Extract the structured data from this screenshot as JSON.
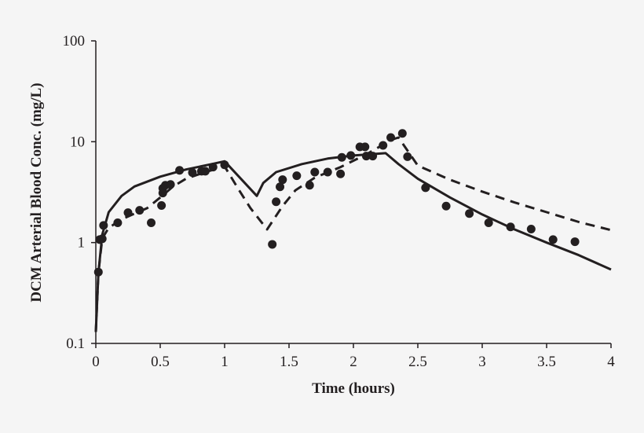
{
  "chart_data": {
    "type": "line",
    "title": "",
    "xlabel": "Time (hours)",
    "ylabel": "DCM Arterial Blood Conc. (mg/L)",
    "xlim": [
      0,
      4
    ],
    "ylim": [
      0.1,
      100
    ],
    "yscale": "log",
    "grid": false,
    "xticks": [
      "0",
      "0.5",
      "1",
      "1.5",
      "2",
      "2.5",
      "3",
      "3.5",
      "4"
    ],
    "xtick_values": [
      0,
      0.5,
      1,
      1.5,
      2,
      2.5,
      3,
      3.5,
      4
    ],
    "yticks": [
      "0.1",
      "1",
      "10",
      "100"
    ],
    "ytick_values": [
      0.1,
      1,
      10,
      100
    ],
    "color": "#231f20",
    "series": [
      {
        "style": "solid-line",
        "x": [
          0,
          0.02,
          0.05,
          0.1,
          0.2,
          0.3,
          0.5,
          0.7,
          0.9,
          1.0,
          1.25,
          1.3,
          1.4,
          1.6,
          1.8,
          2.0,
          2.25,
          2.35,
          2.5,
          2.75,
          3.0,
          3.25,
          3.5,
          3.75,
          4.0
        ],
        "y": [
          0.13,
          0.5,
          1.2,
          2.0,
          2.9,
          3.6,
          4.5,
          5.3,
          6.0,
          6.4,
          2.9,
          3.9,
          5.0,
          6.0,
          6.8,
          7.3,
          7.7,
          6.0,
          4.3,
          2.8,
          1.9,
          1.35,
          1.0,
          0.75,
          0.54
        ]
      },
      {
        "style": "dashed-line",
        "x": [
          0,
          0.02,
          0.05,
          0.1,
          0.2,
          0.4,
          0.5,
          0.6,
          0.7,
          0.85,
          1.0,
          1.1,
          1.2,
          1.33,
          1.45,
          1.55,
          1.7,
          1.9,
          2.1,
          2.3,
          2.35,
          2.5,
          2.75,
          3.0,
          3.25,
          3.5,
          3.75,
          4.0
        ],
        "y": [
          0.13,
          0.5,
          1.1,
          1.4,
          1.7,
          2.2,
          2.8,
          3.6,
          4.3,
          5.0,
          5.7,
          3.5,
          2.2,
          1.35,
          2.3,
          3.3,
          4.4,
          5.6,
          7.5,
          10.5,
          11.0,
          5.8,
          4.2,
          3.2,
          2.5,
          2.0,
          1.6,
          1.33
        ]
      },
      {
        "style": "markers",
        "x": [
          0.02,
          0.03,
          0.05,
          0.06,
          0.17,
          0.25,
          0.34,
          0.43,
          0.51,
          0.52,
          0.52,
          0.54,
          0.58,
          0.65,
          0.75,
          0.82,
          0.85,
          0.91,
          1.0,
          1.37,
          1.4,
          1.43,
          1.45,
          1.56,
          1.66,
          1.7,
          1.8,
          1.9,
          1.91,
          1.98,
          2.05,
          2.09,
          2.1,
          2.15,
          2.23,
          2.29,
          2.38,
          2.42,
          2.56,
          2.72,
          2.9,
          3.05,
          3.22,
          3.38,
          3.55,
          3.72
        ],
        "y": [
          0.51,
          1.07,
          1.09,
          1.48,
          1.57,
          1.98,
          2.09,
          1.57,
          2.33,
          3.1,
          3.45,
          3.7,
          3.77,
          5.2,
          4.94,
          5.1,
          5.1,
          5.6,
          5.9,
          0.96,
          2.54,
          3.57,
          4.2,
          4.6,
          3.7,
          5.0,
          5.0,
          4.8,
          7.0,
          7.3,
          8.9,
          8.9,
          7.2,
          7.2,
          9.2,
          11.0,
          12.1,
          7.1,
          3.5,
          2.3,
          1.94,
          1.57,
          1.43,
          1.36,
          1.07,
          1.02
        ]
      }
    ]
  }
}
